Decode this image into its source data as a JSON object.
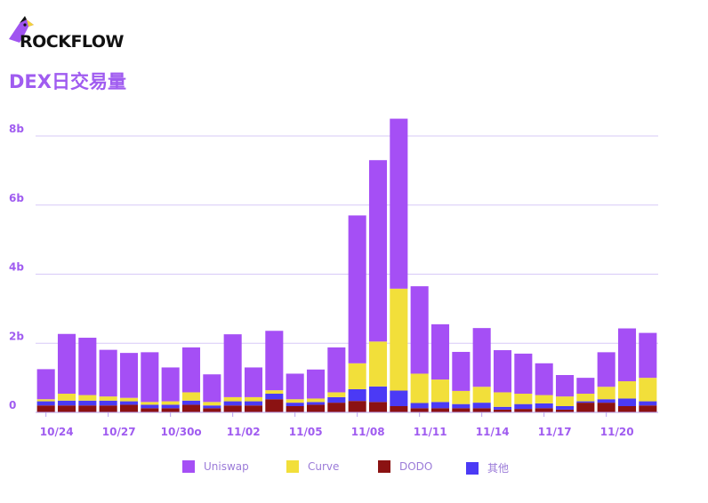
{
  "brand": "ROCKFLOW",
  "title": "DEX日交易量",
  "colors": {
    "Uniswap": "#a54ff5",
    "Curve": "#f2df3a",
    "DODO": "#8b1212",
    "其他": "#4b3af5",
    "grid": "#d7c9f7",
    "tick": "#a05cf0"
  },
  "chart_data": {
    "type": "bar",
    "stacked": true,
    "ylim": [
      0,
      8.5
    ],
    "y_ticks": [
      "0",
      "2b",
      "4b",
      "6b",
      "8b"
    ],
    "y_tick_values": [
      0,
      2,
      4,
      6,
      8
    ],
    "x_tick_labels": [
      "10/24",
      "10/27",
      "10/30o",
      "11/02",
      "11/05",
      "11/08",
      "11/11",
      "11/14",
      "11/17",
      "11/20"
    ],
    "x_tick_indices": [
      0,
      3,
      6,
      9,
      12,
      15,
      18,
      21,
      24,
      27
    ],
    "categories": [
      "10/24",
      "10/25",
      "10/26",
      "10/27",
      "10/28",
      "10/29",
      "10/30",
      "10/31",
      "11/01",
      "11/02",
      "11/03",
      "11/04",
      "11/05",
      "11/06",
      "11/07",
      "11/08",
      "11/09",
      "11/10",
      "11/11",
      "11/12",
      "11/13",
      "11/14",
      "11/15",
      "11/16",
      "11/17",
      "11/18",
      "11/19",
      "11/20",
      "11/21",
      "11/22"
    ],
    "series": [
      {
        "name": "DODO",
        "values": [
          0.2,
          0.2,
          0.2,
          0.2,
          0.22,
          0.12,
          0.12,
          0.22,
          0.12,
          0.2,
          0.2,
          0.38,
          0.18,
          0.22,
          0.28,
          0.33,
          0.3,
          0.18,
          0.12,
          0.12,
          0.12,
          0.12,
          0.08,
          0.1,
          0.12,
          0.08,
          0.28,
          0.28,
          0.18,
          0.2
        ]
      },
      {
        "name": "其他",
        "values": [
          0.12,
          0.14,
          0.14,
          0.14,
          0.1,
          0.1,
          0.1,
          0.12,
          0.08,
          0.12,
          0.12,
          0.16,
          0.1,
          0.08,
          0.16,
          0.34,
          0.45,
          0.45,
          0.15,
          0.18,
          0.12,
          0.16,
          0.08,
          0.14,
          0.14,
          0.1,
          0.04,
          0.1,
          0.22,
          0.12
        ]
      },
      {
        "name": "Curve",
        "values": [
          0.06,
          0.2,
          0.16,
          0.12,
          0.1,
          0.08,
          0.1,
          0.24,
          0.1,
          0.12,
          0.12,
          0.1,
          0.1,
          0.1,
          0.14,
          0.75,
          1.3,
          2.95,
          0.85,
          0.65,
          0.38,
          0.46,
          0.42,
          0.3,
          0.24,
          0.28,
          0.22,
          0.36,
          0.5,
          0.68
        ]
      },
      {
        "name": "Uniswap",
        "values": [
          0.87,
          1.73,
          1.66,
          1.35,
          1.3,
          1.44,
          0.98,
          1.3,
          0.8,
          1.82,
          0.86,
          1.72,
          0.74,
          0.84,
          1.3,
          4.28,
          5.25,
          4.92,
          2.53,
          1.6,
          1.13,
          1.7,
          1.22,
          1.16,
          0.92,
          0.62,
          0.46,
          1.0,
          1.53,
          1.3
        ]
      }
    ],
    "legend": [
      "Uniswap",
      "Curve",
      "DODO",
      "其他"
    ],
    "legend_position": "bottom"
  }
}
